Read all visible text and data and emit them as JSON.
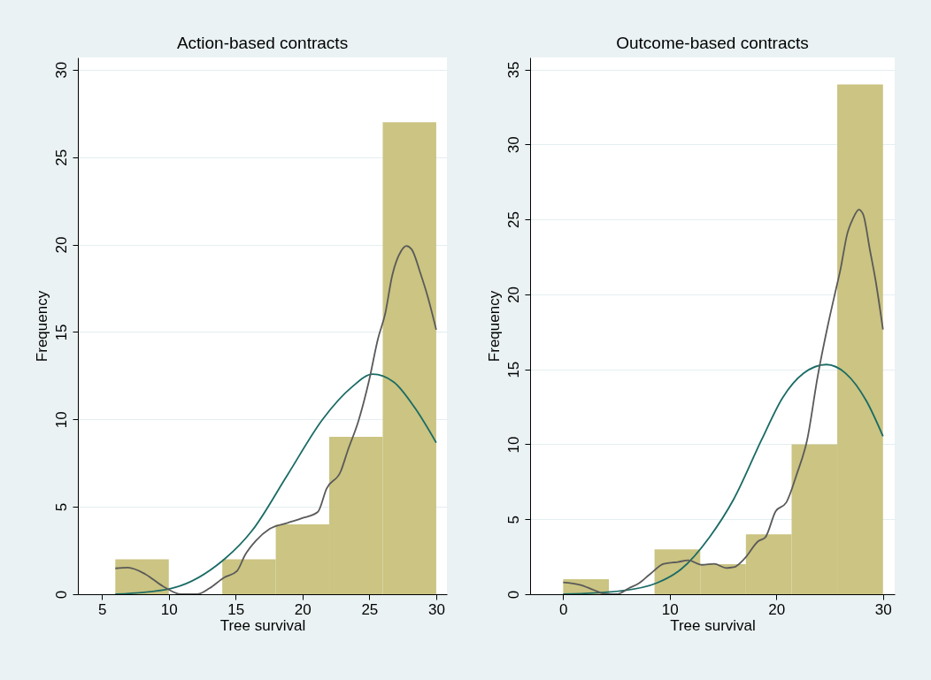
{
  "chart_data": [
    {
      "type": "histogram",
      "title": "Action-based contracts",
      "xlabel": "Tree survival",
      "ylabel": "Frequency",
      "xlim": [
        3.2,
        30.8
      ],
      "ylim": [
        0,
        30.7
      ],
      "xticks": [
        5,
        10,
        15,
        20,
        25,
        30
      ],
      "yticks": [
        0,
        5,
        10,
        15,
        20,
        25,
        30
      ],
      "grid": "y",
      "series": [
        {
          "color": "#cbc482",
          "bins": [
            6,
            10,
            14,
            18,
            22,
            26,
            30
          ],
          "values": [
            2,
            0,
            2,
            4,
            9,
            27
          ]
        },
        {
          "type": "line",
          "color": "#1a6b65",
          "x": [
            6,
            10,
            13.57,
            16.23,
            18.88,
            21.53,
            23.66,
            25.25,
            26.84,
            28.43,
            30
          ],
          "values": [
            0,
            0.3,
            1.64,
            3.64,
            6.83,
            10.03,
            11.83,
            12.59,
            12.13,
            10.63,
            8.67
          ]
        },
        {
          "type": "line",
          "color": "#5a5a5a",
          "x": [
            6,
            6.94,
            8.26,
            9.59,
            10.92,
            12.11,
            13.04,
            14.1,
            15.11,
            15.7,
            16.49,
            17.55,
            18.88,
            19.94,
            21.14,
            21.8,
            22.86,
            23.39,
            24.19,
            24.98,
            25.65,
            26.18,
            26.71,
            27.37,
            27.77,
            28.17,
            28.83,
            29.36,
            30
          ],
          "values": [
            1.48,
            1.52,
            1.14,
            0.44,
            0,
            0,
            0.34,
            0.94,
            1.34,
            2.24,
            3.04,
            3.74,
            4.08,
            4.34,
            4.7,
            6.04,
            7.03,
            8.23,
            9.93,
            12.23,
            14.63,
            16.03,
            18.23,
            19.62,
            19.92,
            19.72,
            18.33,
            17.03,
            15.13
          ]
        }
      ]
    },
    {
      "type": "histogram",
      "title": "Outcome-based contracts",
      "xlabel": "Tree survival",
      "ylabel": "Frequency",
      "xlim": [
        -3.1,
        31.1
      ],
      "ylim": [
        0,
        35.8
      ],
      "xticks": [
        0,
        10,
        20,
        30
      ],
      "yticks": [
        0,
        5,
        10,
        15,
        20,
        25,
        30,
        35
      ],
      "grid": "y",
      "series": [
        {
          "color": "#cbc482",
          "bins": [
            0,
            4.29,
            8.57,
            12.86,
            17.14,
            21.43,
            25.71,
            30
          ],
          "values": [
            1,
            0,
            3,
            2,
            4,
            10,
            34
          ]
        },
        {
          "type": "line",
          "color": "#1a6b65",
          "x": [
            0,
            5.51,
            8.79,
            11.08,
            13.7,
            16,
            18.62,
            20.59,
            22.56,
            24.69,
            26.49,
            28.46,
            30
          ],
          "values": [
            0,
            0.23,
            0.75,
            1.68,
            3.78,
            6.34,
            10.31,
            13.11,
            14.74,
            15.32,
            14.74,
            12.87,
            10.54
          ]
        },
        {
          "type": "line",
          "color": "#5a5a5a",
          "x": [
            0,
            1.57,
            2.89,
            4.03,
            5.02,
            6.16,
            7.15,
            8.13,
            9.44,
            10.75,
            11.74,
            13.02,
            14.16,
            15.31,
            16,
            17.02,
            18.3,
            18.95,
            19.93,
            20.92,
            21.9,
            22.89,
            23.87,
            24.85,
            25.51,
            26,
            26.66,
            27.15,
            27.74,
            28.13,
            28.79,
            29.28,
            30
          ],
          "values": [
            0.79,
            0.63,
            0.28,
            0,
            0,
            0.4,
            0.75,
            1.33,
            2.03,
            2.15,
            2.26,
            1.96,
            2.03,
            1.75,
            1.8,
            2.38,
            3.54,
            3.78,
            5.53,
            6.11,
            7.98,
            10.31,
            14.51,
            18,
            20.1,
            21.62,
            24.07,
            25,
            25.65,
            25.35,
            22.9,
            21.04,
            17.65
          ]
        }
      ]
    }
  ]
}
